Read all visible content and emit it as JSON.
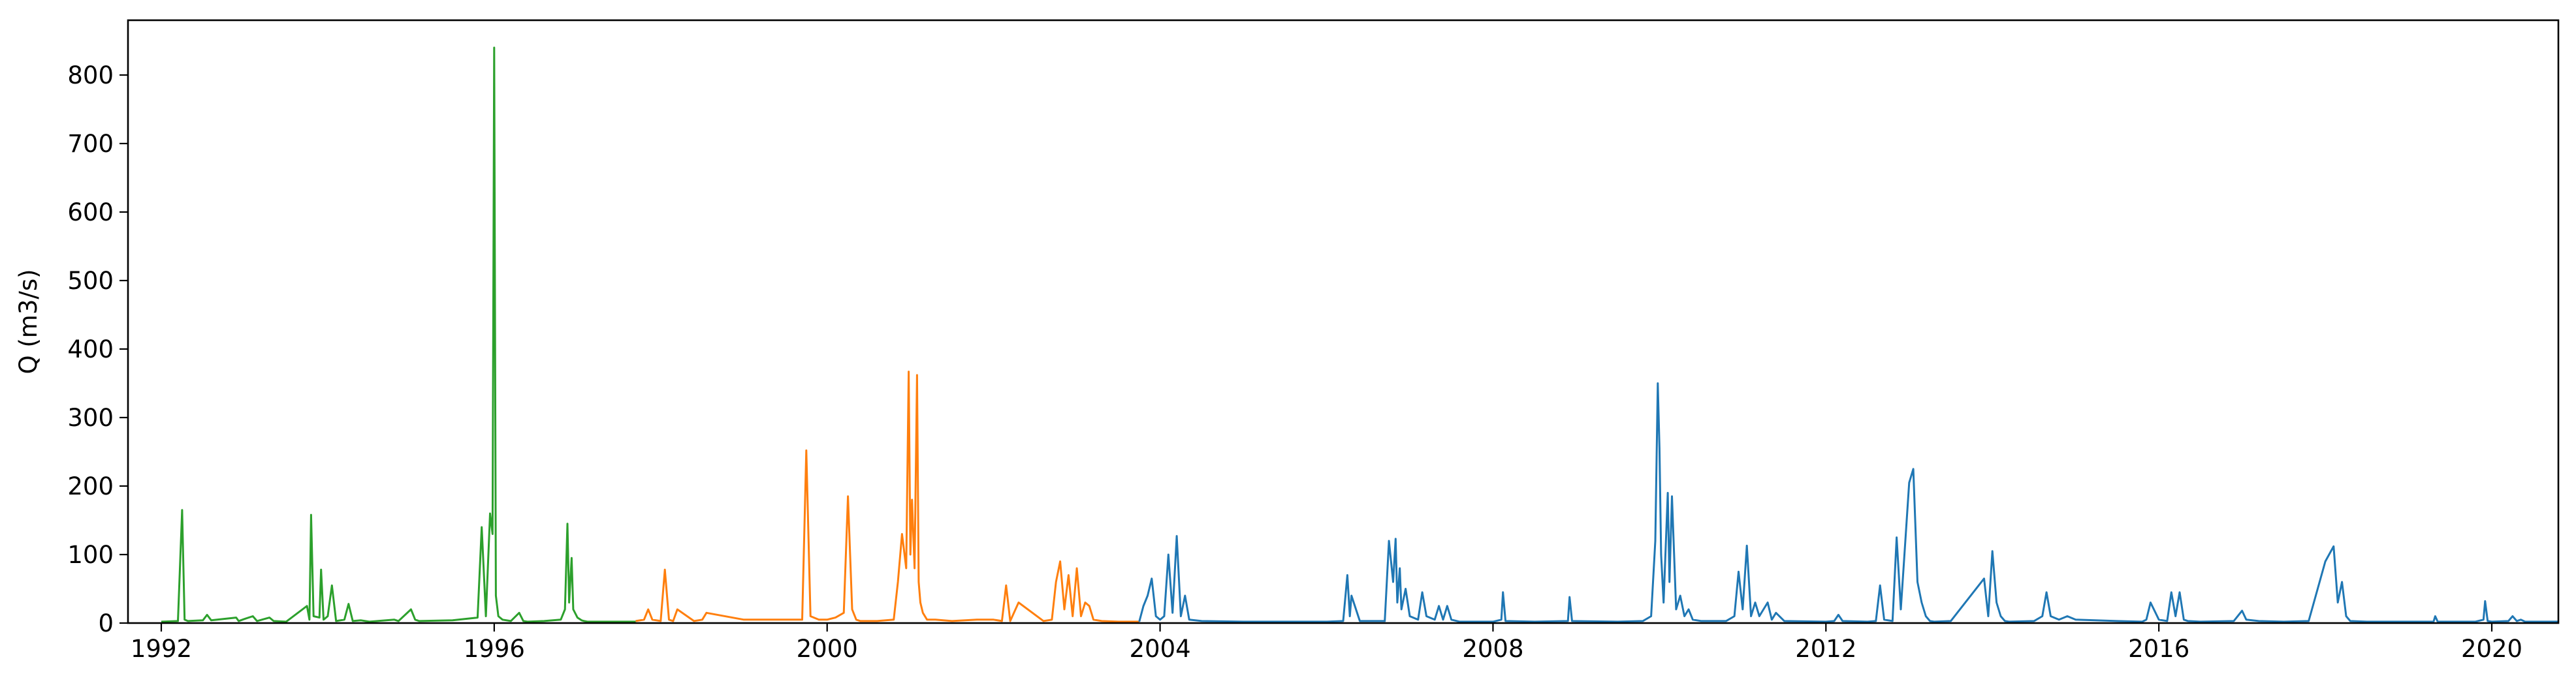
{
  "chart_data": {
    "type": "line",
    "title": "",
    "xlabel": "",
    "ylabel": "Q (m3/s)",
    "xlim": [
      1991.6,
      2020.8
    ],
    "ylim": [
      0,
      880
    ],
    "x_ticks": [
      1992,
      1996,
      2000,
      2004,
      2008,
      2012,
      2016,
      2020
    ],
    "x_tick_labels": [
      "1992",
      "1996",
      "2000",
      "2004",
      "2008",
      "2012",
      "2016",
      "2020"
    ],
    "y_ticks": [
      0,
      100,
      200,
      300,
      400,
      500,
      600,
      700,
      800
    ],
    "y_tick_labels": [
      "0",
      "100",
      "200",
      "300",
      "400",
      "500",
      "600",
      "700",
      "800"
    ],
    "grid": false,
    "legend": "none",
    "series": [
      {
        "color": "#2ca02c",
        "x": [
          1992.0,
          1992.2,
          1992.25,
          1992.28,
          1992.32,
          1992.5,
          1992.55,
          1992.6,
          1992.9,
          1992.93,
          1993.0,
          1993.1,
          1993.15,
          1993.3,
          1993.35,
          1993.5,
          1993.75,
          1993.78,
          1993.8,
          1993.83,
          1993.9,
          1993.92,
          1993.95,
          1994.0,
          1994.05,
          1994.1,
          1994.2,
          1994.25,
          1994.3,
          1994.4,
          1994.45,
          1994.5,
          1994.8,
          1994.85,
          1995.0,
          1995.05,
          1995.1,
          1995.5,
          1995.8,
          1995.85,
          1995.9,
          1995.95,
          1995.98,
          1996.0,
          1996.02,
          1996.05,
          1996.1,
          1996.2,
          1996.3,
          1996.35,
          1996.4,
          1996.6,
          1996.8,
          1996.85,
          1996.88,
          1996.9,
          1996.93,
          1996.95,
          1997.0,
          1997.05,
          1997.08,
          1997.12,
          1997.3,
          1997.5,
          1997.7
        ],
        "y": [
          2,
          3,
          165,
          5,
          3,
          4,
          12,
          4,
          8,
          3,
          6,
          10,
          3,
          8,
          3,
          2,
          25,
          5,
          158,
          10,
          8,
          78,
          5,
          10,
          55,
          3,
          5,
          28,
          3,
          4,
          3,
          2,
          5,
          3,
          20,
          5,
          3,
          4,
          8,
          140,
          10,
          160,
          130,
          840,
          40,
          10,
          5,
          3,
          15,
          3,
          2,
          3,
          5,
          20,
          145,
          30,
          95,
          20,
          8,
          4,
          3,
          2,
          2,
          2,
          2
        ]
      },
      {
        "color": "#ff7f0e",
        "x": [
          1997.7,
          1997.8,
          1997.85,
          1997.9,
          1998.0,
          1998.05,
          1998.1,
          1998.15,
          1998.2,
          1998.4,
          1998.5,
          1998.55,
          1999.0,
          1999.5,
          1999.7,
          1999.75,
          1999.8,
          1999.9,
          2000.0,
          2000.1,
          2000.2,
          2000.25,
          2000.3,
          2000.35,
          2000.4,
          2000.6,
          2000.8,
          2000.85,
          2000.9,
          2000.95,
          2000.98,
          2001.0,
          2001.02,
          2001.05,
          2001.08,
          2001.1,
          2001.12,
          2001.15,
          2001.2,
          2001.3,
          2001.5,
          2001.8,
          2002.0,
          2002.1,
          2002.15,
          2002.2,
          2002.3,
          2002.6,
          2002.7,
          2002.75,
          2002.8,
          2002.85,
          2002.9,
          2002.95,
          2003.0,
          2003.05,
          2003.1,
          2003.15,
          2003.2,
          2003.3,
          2003.5,
          2003.7,
          2003.75
        ],
        "y": [
          3,
          5,
          20,
          5,
          3,
          78,
          5,
          3,
          20,
          3,
          5,
          15,
          5,
          5,
          5,
          252,
          10,
          5,
          5,
          8,
          15,
          185,
          20,
          5,
          3,
          3,
          5,
          60,
          130,
          80,
          367,
          100,
          180,
          80,
          362,
          60,
          30,
          15,
          5,
          5,
          3,
          5,
          5,
          3,
          55,
          3,
          30,
          3,
          5,
          60,
          90,
          20,
          70,
          10,
          80,
          10,
          30,
          25,
          5,
          3,
          2,
          2,
          2
        ]
      },
      {
        "color": "#1f77b4",
        "x": [
          2003.75,
          2003.8,
          2003.85,
          2003.9,
          2003.95,
          2004.0,
          2004.05,
          2004.1,
          2004.15,
          2004.2,
          2004.25,
          2004.3,
          2004.35,
          2004.5,
          2005.0,
          2005.5,
          2006.0,
          2006.2,
          2006.25,
          2006.28,
          2006.3,
          2006.4,
          2006.7,
          2006.75,
          2006.8,
          2006.83,
          2006.85,
          2006.88,
          2006.9,
          2006.95,
          2007.0,
          2007.1,
          2007.15,
          2007.2,
          2007.3,
          2007.35,
          2007.4,
          2007.45,
          2007.5,
          2007.6,
          2008.0,
          2008.1,
          2008.12,
          2008.15,
          2008.5,
          2008.9,
          2008.92,
          2008.95,
          2009.5,
          2009.8,
          2009.9,
          2009.95,
          2009.98,
          2010.0,
          2010.02,
          2010.05,
          2010.1,
          2010.12,
          2010.15,
          2010.2,
          2010.25,
          2010.3,
          2010.35,
          2010.4,
          2010.5,
          2010.8,
          2010.9,
          2010.95,
          2011.0,
          2011.05,
          2011.1,
          2011.15,
          2011.2,
          2011.3,
          2011.35,
          2011.4,
          2011.5,
          2012.0,
          2012.1,
          2012.15,
          2012.2,
          2012.5,
          2012.6,
          2012.65,
          2012.7,
          2012.8,
          2012.85,
          2012.9,
          2013.0,
          2013.05,
          2013.1,
          2013.15,
          2013.2,
          2013.25,
          2013.3,
          2013.5,
          2013.9,
          2013.95,
          2014.0,
          2014.05,
          2014.1,
          2014.15,
          2014.2,
          2014.5,
          2014.6,
          2014.65,
          2014.7,
          2014.8,
          2014.9,
          2015.0,
          2015.5,
          2015.8,
          2015.85,
          2015.9,
          2016.0,
          2016.1,
          2016.15,
          2016.2,
          2016.25,
          2016.3,
          2016.35,
          2016.5,
          2016.9,
          2017.0,
          2017.05,
          2017.2,
          2017.5,
          2017.8,
          2018.0,
          2018.1,
          2018.15,
          2018.2,
          2018.25,
          2018.3,
          2018.5,
          2019.0,
          2019.3,
          2019.32,
          2019.35,
          2019.5,
          2019.8,
          2019.9,
          2019.92,
          2019.95,
          2020.0,
          2020.2,
          2020.25,
          2020.3,
          2020.35,
          2020.4,
          2020.8
        ],
        "y": [
          2,
          25,
          40,
          65,
          10,
          5,
          10,
          100,
          15,
          127,
          10,
          40,
          5,
          3,
          2,
          2,
          2,
          3,
          70,
          10,
          40,
          3,
          3,
          120,
          60,
          123,
          30,
          80,
          20,
          50,
          10,
          5,
          45,
          10,
          5,
          25,
          5,
          25,
          5,
          2,
          2,
          5,
          45,
          3,
          2,
          3,
          38,
          3,
          2,
          3,
          10,
          120,
          350,
          255,
          100,
          30,
          190,
          60,
          185,
          20,
          40,
          10,
          20,
          5,
          3,
          3,
          10,
          75,
          20,
          113,
          10,
          30,
          10,
          30,
          5,
          15,
          3,
          2,
          3,
          12,
          3,
          2,
          3,
          55,
          5,
          3,
          125,
          20,
          205,
          225,
          60,
          30,
          10,
          3,
          2,
          3,
          65,
          10,
          105,
          30,
          10,
          3,
          2,
          3,
          10,
          45,
          10,
          5,
          10,
          5,
          3,
          2,
          5,
          30,
          5,
          3,
          45,
          10,
          45,
          5,
          3,
          2,
          3,
          18,
          5,
          3,
          2,
          3,
          90,
          112,
          30,
          60,
          10,
          3,
          2,
          2,
          2,
          10,
          2,
          2,
          2,
          5,
          32,
          3,
          2,
          3,
          10,
          3,
          5,
          2,
          2
        ]
      }
    ]
  }
}
